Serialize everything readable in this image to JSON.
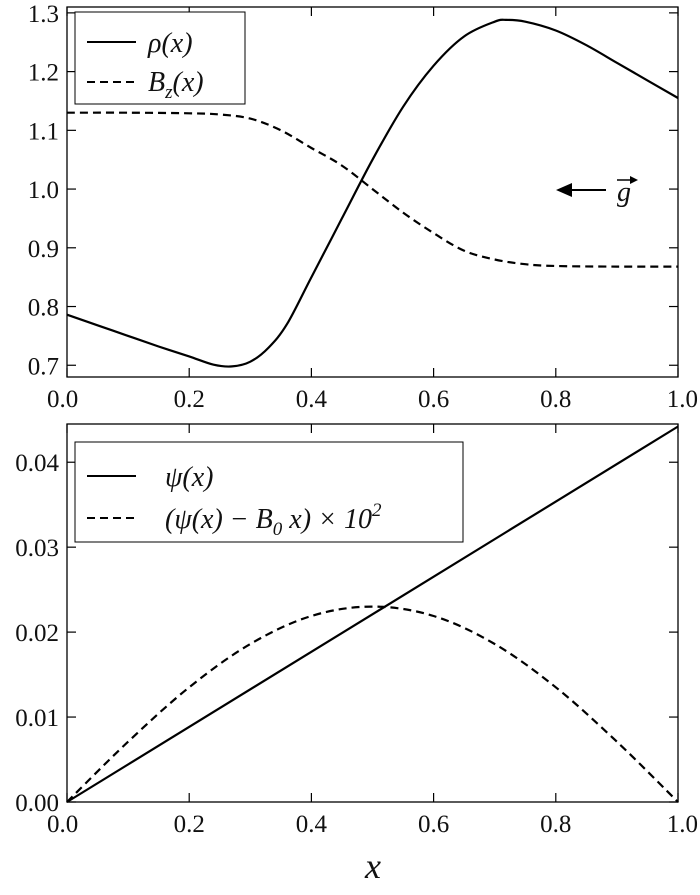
{
  "chart_data": [
    {
      "type": "line",
      "title": "",
      "xlabel": "",
      "ylabel": "",
      "xlim": [
        0,
        1
      ],
      "ylim": [
        0.68,
        1.31
      ],
      "grid": false,
      "legend_position": "top-left",
      "x_ticks": [
        "0.0",
        "0.2",
        "0.4",
        "0.6",
        "0.8",
        "1.0"
      ],
      "y_ticks": [
        "0.7",
        "0.8",
        "0.9",
        "1.0",
        "1.1",
        "1.2",
        "1.3"
      ],
      "annotation": "g",
      "series": [
        {
          "name": "ρ(x)",
          "style": "solid",
          "x": [
            0.0,
            0.05,
            0.1,
            0.15,
            0.2,
            0.24,
            0.27,
            0.3,
            0.33,
            0.36,
            0.4,
            0.45,
            0.5,
            0.55,
            0.6,
            0.65,
            0.7,
            0.72,
            0.75,
            0.8,
            0.85,
            0.9,
            0.95,
            1.0
          ],
          "y": [
            0.786,
            0.768,
            0.75,
            0.732,
            0.715,
            0.701,
            0.698,
            0.706,
            0.73,
            0.77,
            0.85,
            0.95,
            1.05,
            1.14,
            1.21,
            1.26,
            1.285,
            1.288,
            1.285,
            1.27,
            1.245,
            1.215,
            1.185,
            1.155
          ]
        },
        {
          "name": "B_z(x)",
          "style": "dashed",
          "x": [
            0.0,
            0.1,
            0.2,
            0.25,
            0.3,
            0.35,
            0.4,
            0.45,
            0.5,
            0.55,
            0.6,
            0.65,
            0.7,
            0.75,
            0.8,
            0.9,
            1.0
          ],
          "y": [
            1.13,
            1.13,
            1.129,
            1.127,
            1.12,
            1.1,
            1.07,
            1.04,
            1.0,
            0.96,
            0.925,
            0.895,
            0.88,
            0.872,
            0.869,
            0.868,
            0.868
          ]
        }
      ]
    },
    {
      "type": "line",
      "title": "",
      "xlabel": "x",
      "ylabel": "",
      "xlim": [
        0,
        1
      ],
      "ylim": [
        0,
        0.0445
      ],
      "grid": false,
      "legend_position": "top-left",
      "x_ticks": [
        "0.0",
        "0.2",
        "0.4",
        "0.6",
        "0.8",
        "1.0"
      ],
      "y_ticks": [
        "0.00",
        "0.01",
        "0.02",
        "0.03",
        "0.04"
      ],
      "series": [
        {
          "name": "ψ(x)",
          "style": "solid",
          "x": [
            0.0,
            1.0
          ],
          "y": [
            0.0,
            0.0442
          ]
        },
        {
          "name": "(ψ(x) − B0 x) × 10^2",
          "style": "dashed",
          "x": [
            0.0,
            0.1,
            0.2,
            0.3,
            0.4,
            0.5,
            0.6,
            0.7,
            0.8,
            0.9,
            1.0
          ],
          "y": [
            0.0,
            0.0071,
            0.0135,
            0.0186,
            0.0219,
            0.023,
            0.0219,
            0.0186,
            0.0135,
            0.0071,
            0.0
          ]
        }
      ]
    }
  ],
  "legends": {
    "top": {
      "rho_label": "ρ(x)",
      "bz_base": "B",
      "bz_sub": "z",
      "bz_rest": "(x)"
    },
    "bottom": {
      "psi_label": "ψ(x)",
      "diff_main": "(ψ(x) − B",
      "diff_sub": "0",
      "diff_mid": " x) × 10",
      "diff_sup": "2"
    }
  },
  "annotation": {
    "g_label": "g"
  }
}
